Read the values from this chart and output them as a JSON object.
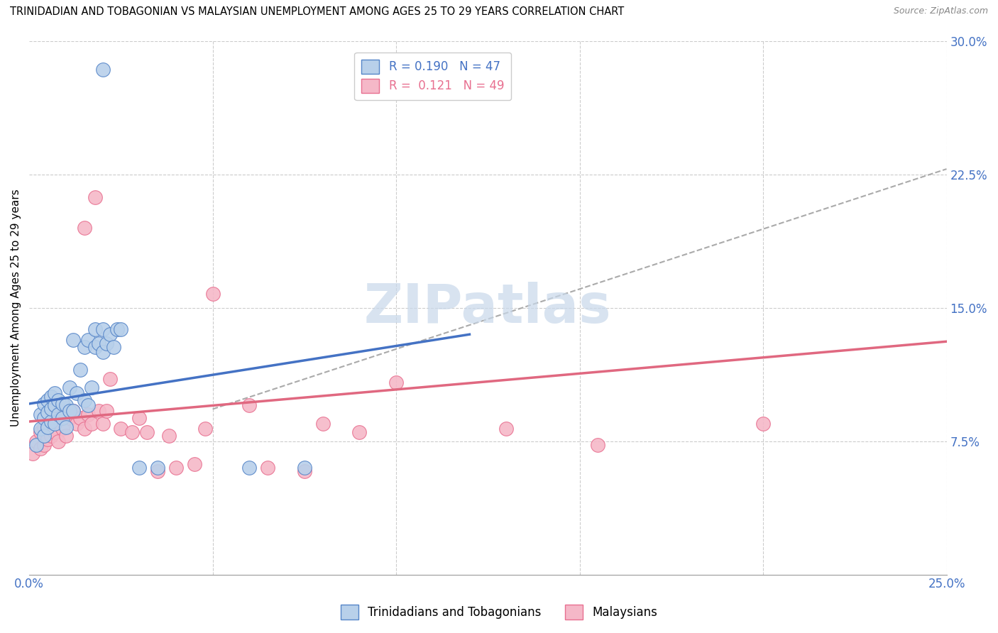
{
  "title": "TRINIDADIAN AND TOBAGONIAN VS MALAYSIAN UNEMPLOYMENT AMONG AGES 25 TO 29 YEARS CORRELATION CHART",
  "source": "Source: ZipAtlas.com",
  "ylabel": "Unemployment Among Ages 25 to 29 years",
  "xlim": [
    0.0,
    0.25
  ],
  "ylim": [
    0.0,
    0.3
  ],
  "blue_R": "0.190",
  "blue_N": "47",
  "pink_R": "0.121",
  "pink_N": "49",
  "blue_color": "#b8d0ea",
  "pink_color": "#f5b8c8",
  "blue_edge_color": "#5585c8",
  "pink_edge_color": "#e87090",
  "blue_line_color": "#4472c4",
  "pink_line_color": "#e06880",
  "dash_line_color": "#aaaaaa",
  "watermark_text": "ZIPatlas",
  "watermark_color": "#c8d8ea",
  "blue_line_x": [
    0.0,
    0.12
  ],
  "blue_line_y": [
    0.096,
    0.135
  ],
  "pink_line_x": [
    0.0,
    0.25
  ],
  "pink_line_y": [
    0.086,
    0.131
  ],
  "dash_line_x": [
    0.05,
    0.25
  ],
  "dash_line_y": [
    0.093,
    0.228
  ],
  "blue_scatter_x": [
    0.002,
    0.003,
    0.003,
    0.004,
    0.004,
    0.004,
    0.005,
    0.005,
    0.005,
    0.006,
    0.006,
    0.006,
    0.007,
    0.007,
    0.007,
    0.008,
    0.008,
    0.009,
    0.009,
    0.01,
    0.01,
    0.011,
    0.011,
    0.012,
    0.012,
    0.013,
    0.014,
    0.015,
    0.015,
    0.016,
    0.016,
    0.017,
    0.018,
    0.018,
    0.019,
    0.02,
    0.02,
    0.021,
    0.022,
    0.023,
    0.024,
    0.025,
    0.03,
    0.035,
    0.06,
    0.075,
    0.02
  ],
  "blue_scatter_y": [
    0.073,
    0.082,
    0.09,
    0.078,
    0.088,
    0.096,
    0.083,
    0.091,
    0.098,
    0.086,
    0.093,
    0.1,
    0.085,
    0.095,
    0.102,
    0.09,
    0.098,
    0.088,
    0.096,
    0.083,
    0.095,
    0.092,
    0.105,
    0.092,
    0.132,
    0.102,
    0.115,
    0.098,
    0.128,
    0.095,
    0.132,
    0.105,
    0.128,
    0.138,
    0.13,
    0.125,
    0.138,
    0.13,
    0.135,
    0.128,
    0.138,
    0.138,
    0.06,
    0.06,
    0.06,
    0.06,
    0.284
  ],
  "pink_scatter_x": [
    0.001,
    0.002,
    0.003,
    0.003,
    0.004,
    0.004,
    0.005,
    0.005,
    0.006,
    0.006,
    0.007,
    0.007,
    0.008,
    0.008,
    0.009,
    0.01,
    0.01,
    0.011,
    0.012,
    0.013,
    0.014,
    0.015,
    0.016,
    0.017,
    0.018,
    0.019,
    0.02,
    0.021,
    0.022,
    0.025,
    0.028,
    0.03,
    0.032,
    0.035,
    0.038,
    0.04,
    0.045,
    0.048,
    0.05,
    0.06,
    0.065,
    0.075,
    0.08,
    0.09,
    0.1,
    0.13,
    0.155,
    0.2,
    0.015
  ],
  "pink_scatter_y": [
    0.068,
    0.075,
    0.071,
    0.08,
    0.073,
    0.083,
    0.076,
    0.085,
    0.078,
    0.088,
    0.08,
    0.09,
    0.075,
    0.088,
    0.082,
    0.078,
    0.09,
    0.088,
    0.092,
    0.085,
    0.088,
    0.082,
    0.09,
    0.085,
    0.212,
    0.092,
    0.085,
    0.092,
    0.11,
    0.082,
    0.08,
    0.088,
    0.08,
    0.058,
    0.078,
    0.06,
    0.062,
    0.082,
    0.158,
    0.095,
    0.06,
    0.058,
    0.085,
    0.08,
    0.108,
    0.082,
    0.073,
    0.085,
    0.195
  ]
}
